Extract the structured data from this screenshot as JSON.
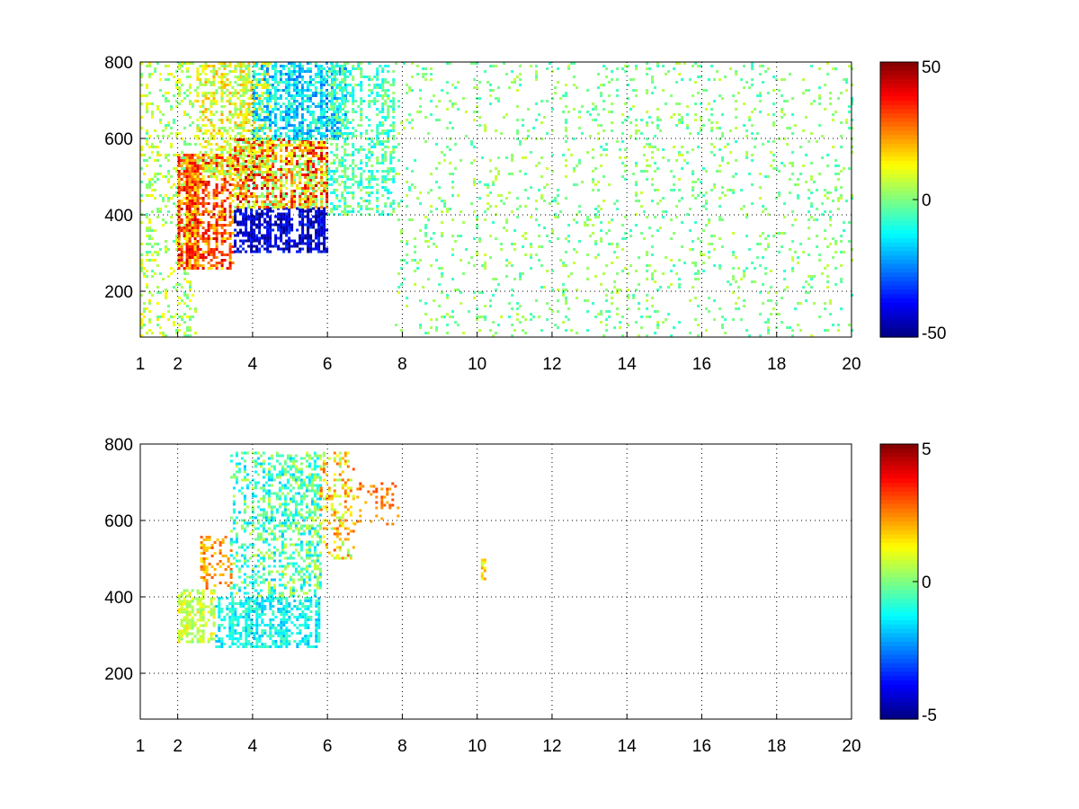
{
  "chart_data": [
    {
      "type": "heatmap",
      "title": "",
      "xlabel": "",
      "ylabel": "",
      "xlim": [
        1,
        20
      ],
      "ylim": [
        80,
        800
      ],
      "x_ticks": [
        1,
        2,
        4,
        6,
        8,
        10,
        12,
        14,
        16,
        18,
        20
      ],
      "y_ticks": [
        200,
        400,
        600,
        800
      ],
      "grid": true,
      "colormap": "jet",
      "colorbar": {
        "range": [
          -50,
          50
        ],
        "ticks": [
          50,
          0,
          -50
        ]
      },
      "regions": [
        {
          "x": [
            1.0,
            2.5
          ],
          "y": [
            80,
            800
          ],
          "mean": 5,
          "spread": 10,
          "density": 0.3
        },
        {
          "x": [
            2.0,
            3.5
          ],
          "y": [
            260,
            560
          ],
          "mean": 28,
          "spread": 15,
          "density": 0.9
        },
        {
          "x": [
            2.5,
            4.5
          ],
          "y": [
            500,
            800
          ],
          "mean": 10,
          "spread": 12,
          "density": 0.7
        },
        {
          "x": [
            3.5,
            6.0
          ],
          "y": [
            300,
            420
          ],
          "mean": -42,
          "spread": 10,
          "density": 0.9
        },
        {
          "x": [
            3.5,
            6.0
          ],
          "y": [
            420,
            600
          ],
          "mean": 20,
          "spread": 25,
          "density": 0.85
        },
        {
          "x": [
            4.0,
            6.5
          ],
          "y": [
            600,
            800
          ],
          "mean": -15,
          "spread": 12,
          "density": 0.8
        },
        {
          "x": [
            6.0,
            7.8
          ],
          "y": [
            400,
            800
          ],
          "mean": -5,
          "spread": 10,
          "density": 0.55
        },
        {
          "x": [
            7.8,
            20.0
          ],
          "y": [
            80,
            800
          ],
          "mean": 0,
          "spread": 8,
          "density": 0.12
        }
      ]
    },
    {
      "type": "heatmap",
      "title": "",
      "xlabel": "",
      "ylabel": "",
      "xlim": [
        1,
        20
      ],
      "ylim": [
        80,
        800
      ],
      "x_ticks": [
        1,
        2,
        4,
        6,
        8,
        10,
        12,
        14,
        16,
        18,
        20
      ],
      "y_ticks": [
        200,
        400,
        600,
        800
      ],
      "grid": true,
      "colormap": "jet",
      "colorbar": {
        "range": [
          -5,
          5
        ],
        "ticks": [
          5,
          0,
          -5
        ]
      },
      "regions": [
        {
          "x": [
            2.0,
            3.0
          ],
          "y": [
            280,
            420
          ],
          "mean": 0.8,
          "spread": 0.8,
          "density": 0.7
        },
        {
          "x": [
            2.6,
            3.4
          ],
          "y": [
            420,
            560
          ],
          "mean": 2.2,
          "spread": 0.8,
          "density": 0.45
        },
        {
          "x": [
            3.0,
            5.8
          ],
          "y": [
            270,
            400
          ],
          "mean": -1.2,
          "spread": 0.8,
          "density": 0.8
        },
        {
          "x": [
            3.4,
            5.8
          ],
          "y": [
            400,
            780
          ],
          "mean": -0.5,
          "spread": 1.4,
          "density": 0.55
        },
        {
          "x": [
            5.8,
            6.7
          ],
          "y": [
            500,
            780
          ],
          "mean": 1.5,
          "spread": 1.5,
          "density": 0.4
        },
        {
          "x": [
            6.7,
            7.9
          ],
          "y": [
            580,
            700
          ],
          "mean": 2.5,
          "spread": 0.6,
          "density": 0.25
        },
        {
          "x": [
            10.1,
            10.2
          ],
          "y": [
            440,
            500
          ],
          "mean": 1.5,
          "spread": 0.8,
          "density": 0.8
        }
      ]
    }
  ]
}
